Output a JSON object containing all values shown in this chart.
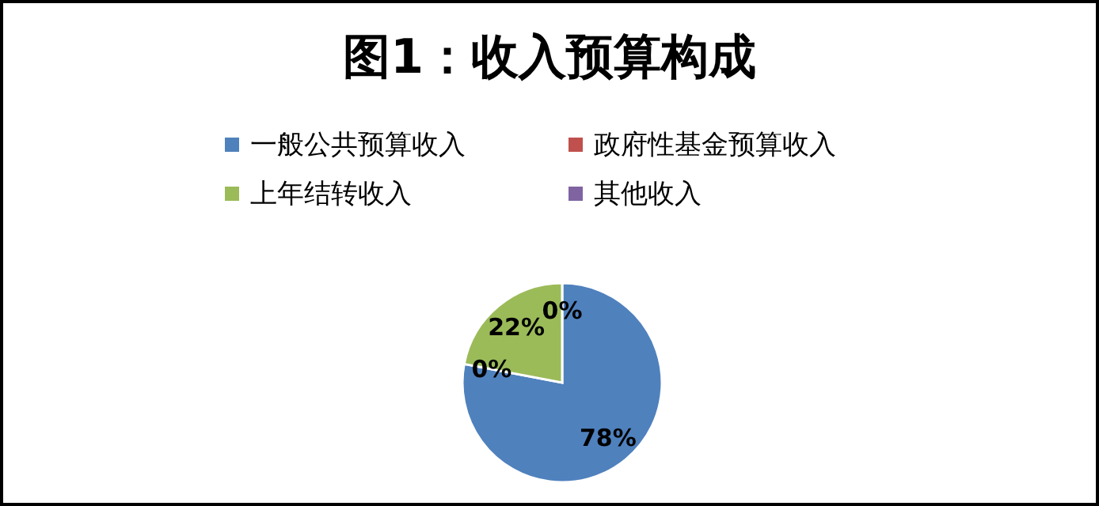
{
  "chart_data": {
    "type": "pie",
    "title": "图1：收入预算构成",
    "categories": [
      "一般公共预算收入",
      "政府性基金预算收入",
      "上年结转收入",
      "其他收入"
    ],
    "values": [
      78,
      0,
      22,
      0
    ],
    "value_labels": [
      "78%",
      "0%",
      "22%",
      "0%"
    ],
    "colors": [
      "#4f81bd",
      "#c0504d",
      "#9bbb59",
      "#8064a2"
    ],
    "legend": "top"
  }
}
